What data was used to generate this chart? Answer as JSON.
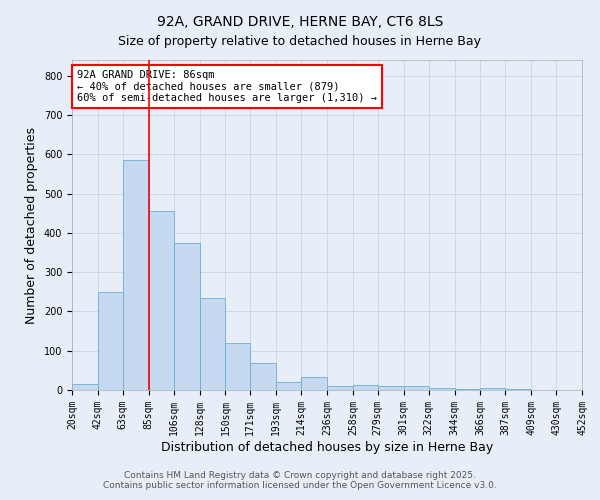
{
  "title1": "92A, GRAND DRIVE, HERNE BAY, CT6 8LS",
  "title2": "Size of property relative to detached houses in Herne Bay",
  "xlabel": "Distribution of detached houses by size in Herne Bay",
  "ylabel": "Number of detached properties",
  "bin_edges": [
    20,
    42,
    63,
    85,
    106,
    128,
    150,
    171,
    193,
    214,
    236,
    258,
    279,
    301,
    322,
    344,
    366,
    387,
    409,
    430,
    452
  ],
  "bar_heights": [
    15,
    250,
    585,
    455,
    375,
    235,
    120,
    68,
    20,
    32,
    10,
    13,
    10,
    10,
    5,
    3,
    4,
    2,
    0,
    0
  ],
  "bar_color": "#c5d9f0",
  "bar_edge_color": "#6baed6",
  "vline_x": 85,
  "vline_color": "red",
  "vline_linewidth": 1.2,
  "annotation_text": "92A GRAND DRIVE: 86sqm\n← 40% of detached houses are smaller (879)\n60% of semi-detached houses are larger (1,310) →",
  "annotation_box_color": "white",
  "annotation_box_edge_color": "red",
  "ylim": [
    0,
    840
  ],
  "yticks": [
    0,
    100,
    200,
    300,
    400,
    500,
    600,
    700,
    800
  ],
  "grid_color": "#c5d5e8",
  "background_color": "#e8eef8",
  "footer1": "Contains HM Land Registry data © Crown copyright and database right 2025.",
  "footer2": "Contains public sector information licensed under the Open Government Licence v3.0.",
  "title1_fontsize": 10,
  "title2_fontsize": 9,
  "xlabel_fontsize": 9,
  "ylabel_fontsize": 9,
  "tick_fontsize": 7,
  "annotation_fontsize": 7.5,
  "footer_fontsize": 6.5
}
